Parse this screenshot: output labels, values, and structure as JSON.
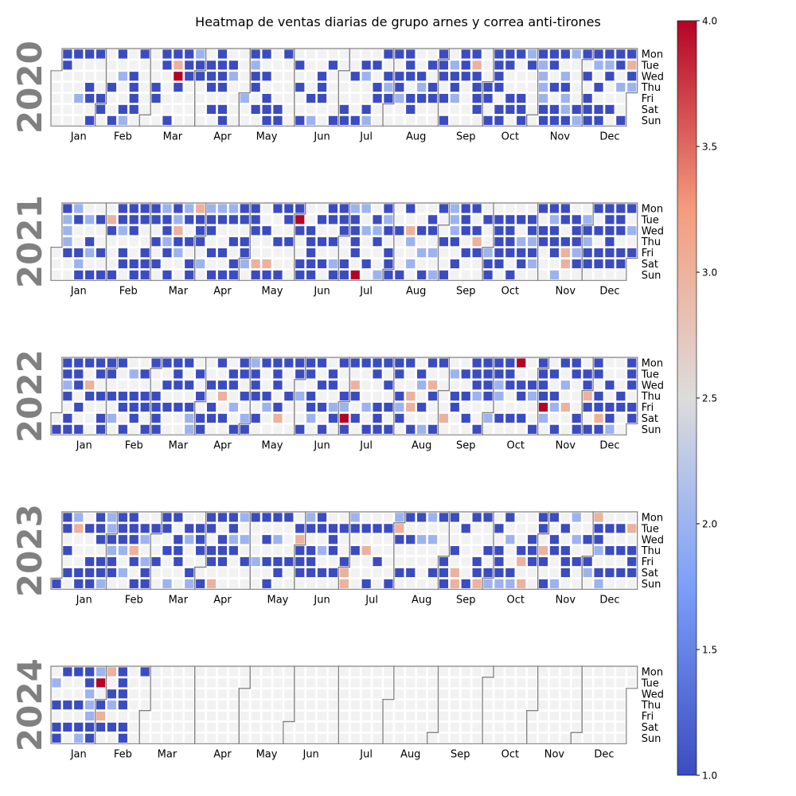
{
  "chart_data": {
    "type": "heatmap",
    "title": "Heatmap de ventas diarias de grupo arnes y correa anti-tirones",
    "years": [
      "2020",
      "2021",
      "2022",
      "2023",
      "2024"
    ],
    "weekday_labels": [
      "Mon",
      "Tue",
      "Wed",
      "Thu",
      "Fri",
      "Sat",
      "Sun"
    ],
    "month_labels": [
      "Jan",
      "Feb",
      "Mar",
      "Apr",
      "May",
      "Jun",
      "Jul",
      "Aug",
      "Sep",
      "Oct",
      "Nov",
      "Dec"
    ],
    "colorbar": {
      "min": 1.0,
      "max": 4.0,
      "ticks": [
        1.0,
        1.5,
        2.0,
        2.5,
        3.0,
        3.5,
        4.0
      ],
      "colormap": "coolwarm"
    },
    "grid": false,
    "colors": {
      "empty_cell": "#f2f2f2",
      "month_border": "#808080",
      "year_label": "#808080"
    },
    "sales": {
      "2020": {
        "01-06": 1,
        "01-07": 1,
        "01-13": 1,
        "01-17": 2,
        "01-20": 1,
        "01-23": 1,
        "01-24": 1,
        "01-26": 1,
        "01-27": 1,
        "01-31": 1,
        "02-01": 1,
        "02-06": 1,
        "02-09": 1,
        "02-10": 1,
        "02-12": 2,
        "02-15": 1,
        "02-16": 2,
        "02-19": 1,
        "02-20": 1,
        "02-21": 1,
        "02-22": 1,
        "02-24": 1,
        "03-05": 1,
        "03-06": 1,
        "03-09": 1,
        "03-10": 1,
        "03-15": 1,
        "03-16": 1,
        "03-17": 3,
        "03-18": 4,
        "03-19": 1,
        "03-23": 1,
        "03-24": 1,
        "03-25": 1,
        "03-30": 2,
        "03-31": 1,
        "04-01": 1,
        "04-07": 1,
        "04-08": 1,
        "04-09": 1,
        "04-11": 1,
        "04-13": 1,
        "04-14": 1,
        "04-15": 1,
        "04-16": 1,
        "04-18": 1,
        "04-19": 1,
        "04-21": 1,
        "04-22": 2,
        "05-01": 2,
        "05-04": 1,
        "05-05": 2,
        "05-06": 1,
        "05-07": 1,
        "05-09": 1,
        "05-11": 1,
        "05-13": 1,
        "05-15": 1,
        "05-16": 1,
        "05-17": 1,
        "05-23": 1,
        "05-24": 1,
        "05-25": 1,
        "06-02": 1,
        "06-04": 1,
        "06-07": 1,
        "06-12": 1,
        "06-14": 2,
        "06-17": 1,
        "06-18": 1,
        "06-19": 1,
        "06-23": 1,
        "06-28": 1,
        "07-04": 1,
        "07-05": 1,
        "07-08": 1,
        "07-12": 1,
        "07-14": 1,
        "07-15": 2,
        "07-18": 1,
        "07-19": 2,
        "07-21": 1,
        "07-23": 1,
        "07-24": 1,
        "07-27": 1,
        "07-29": 1,
        "07-30": 2,
        "07-31": 1,
        "08-03": 1,
        "08-05": 1,
        "08-06": 1,
        "08-07": 2,
        "08-10": 1,
        "08-11": 1,
        "08-12": 1,
        "08-14": 1,
        "08-15": 1,
        "08-19": 1,
        "08-20": 2,
        "08-21": 1,
        "08-25": 1,
        "08-27": 1,
        "08-28": 1,
        "08-31": 1,
        "09-01": 1,
        "09-02": 1,
        "09-04": 1,
        "09-06": 1,
        "09-08": 2,
        "09-09": 1,
        "09-10": 1,
        "09-11": 2,
        "09-14": 1,
        "09-15": 1,
        "09-16": 1,
        "09-21": 1,
        "09-22": 3,
        "09-23": 1,
        "09-24": 1,
        "09-25": 1,
        "09-26": 1,
        "10-01": 1,
        "10-02": 1,
        "10-04": 1,
        "10-05": 1,
        "10-06": 1,
        "10-07": 1,
        "10-08": 1,
        "10-10": 1,
        "10-11": 1,
        "10-12": 1,
        "10-13": 1,
        "10-16": 1,
        "10-17": 1,
        "10-19": 1,
        "10-23": 1,
        "10-24": 1,
        "10-25": 1,
        "10-26": 2,
        "10-27": 1,
        "11-02": 1,
        "11-03": 2,
        "11-04": 2,
        "11-05": 2,
        "11-06": 2,
        "11-07": 1,
        "11-08": 1,
        "11-09": 1,
        "11-10": 1,
        "11-12": 1,
        "11-14": 1,
        "11-15": 1,
        "11-16": 1,
        "11-18": 2,
        "11-19": 1,
        "11-20": 2,
        "11-21": 2,
        "11-22": 1,
        "11-23": 2,
        "11-28": 1,
        "11-29": 2,
        "11-30": 1,
        "12-02": 1,
        "12-04": 1,
        "12-05": 1,
        "12-06": 1,
        "12-07": 1,
        "12-08": 2,
        "12-10": 1,
        "12-12": 1,
        "12-13": 1,
        "12-14": 1,
        "12-15": 2,
        "12-16": 1,
        "12-19": 1,
        "12-21": 1,
        "12-22": 1,
        "12-24": 2,
        "12-27": 1,
        "12-28": 1,
        "12-29": 3,
        "12-30": 1,
        "12-31": 2
      },
      "2021": {
        "01-04": 1,
        "01-05": 2,
        "01-06": 2,
        "01-07": 2,
        "01-08": 1,
        "01-11": 2,
        "01-12": 1,
        "01-15": 1,
        "01-16": 2,
        "01-17": 1,
        "01-19": 2,
        "01-21": 1,
        "01-22": 2,
        "01-24": 1,
        "01-26": 1,
        "01-29": 1,
        "01-31": 1,
        "02-02": 3,
        "02-03": 1,
        "02-07": 1,
        "02-08": 1,
        "02-09": 1,
        "02-10": 2,
        "02-12": 1,
        "02-13": 1,
        "02-15": 1,
        "02-16": 1,
        "02-17": 1,
        "02-20": 1,
        "02-21": 1,
        "02-22": 1,
        "02-23": 1,
        "02-26": 1,
        "02-27": 1,
        "02-28": 1,
        "03-01": 1,
        "03-02": 1,
        "03-04": 1,
        "03-06": 1,
        "03-08": 2,
        "03-09": 1,
        "03-10": 1,
        "03-11": 2,
        "03-12": 1,
        "03-14": 1,
        "03-15": 1,
        "03-16": 2,
        "03-17": 3,
        "03-18": 1,
        "03-19": 2,
        "03-22": 2,
        "03-23": 1,
        "03-25": 1,
        "03-27": 1,
        "03-28": 1,
        "03-29": 3,
        "03-30": 1,
        "03-31": 1,
        "04-01": 1,
        "04-03": 2,
        "04-05": 2,
        "04-06": 1,
        "04-07": 1,
        "04-09": 1,
        "04-11": 1,
        "04-12": 2,
        "04-13": 1,
        "04-16": 1,
        "04-18": 1,
        "04-19": 2,
        "04-20": 1,
        "04-22": 1,
        "04-24": 1,
        "04-25": 1,
        "04-26": 1,
        "04-27": 1,
        "04-29": 1,
        "04-30": 1,
        "05-01": 2,
        "05-03": 1,
        "05-04": 1,
        "05-05": 1,
        "05-08": 3,
        "05-09": 1,
        "05-12": 1,
        "05-15": 3,
        "05-16": 1,
        "05-17": 1,
        "05-20": 1,
        "05-23": 1,
        "05-24": 1,
        "05-25": 1,
        "05-27": 1,
        "05-31": 1,
        "06-01": 4,
        "06-02": 1,
        "06-05": 1,
        "06-06": 1,
        "06-09": 1,
        "06-10": 1,
        "06-11": 1,
        "06-12": 1,
        "06-13": 1,
        "06-15": 1,
        "06-17": 1,
        "06-19": 1,
        "06-21": 1,
        "06-22": 1,
        "06-24": 1,
        "06-26": 2,
        "06-27": 1,
        "06-28": 1,
        "06-29": 1,
        "06-30": 1,
        "07-03": 1,
        "07-04": 1,
        "07-05": 2,
        "07-06": 1,
        "07-07": 1,
        "07-08": 1,
        "07-09": 1,
        "07-11": 4,
        "07-12": 2,
        "07-14": 2,
        "07-17": 1,
        "07-20": 1,
        "07-21": 2,
        "07-22": 1,
        "07-25": 2,
        "07-26": 1,
        "07-27": 2,
        "07-28": 1,
        "07-30": 1,
        "07-31": 1,
        "08-01": 1,
        "08-04": 1,
        "08-08": 1,
        "08-09": 1,
        "08-11": 3,
        "08-12": 2,
        "08-14": 2,
        "08-18": 1,
        "08-20": 2,
        "08-22": 1,
        "08-24": 1,
        "08-25": 1,
        "08-27": 2,
        "08-29": 2,
        "08-30": 1,
        "09-02": 1,
        "09-05": 1,
        "09-06": 2,
        "09-07": 2,
        "09-08": 2,
        "09-09": 1,
        "09-11": 1,
        "09-13": 1,
        "09-14": 1,
        "09-15": 1,
        "09-17": 1,
        "09-20": 1,
        "09-22": 1,
        "09-23": 3,
        "09-24": 1,
        "09-28": 1,
        "10-01": 2,
        "10-02": 1,
        "10-03": 1,
        "10-05": 1,
        "10-06": 1,
        "10-07": 1,
        "10-08": 1,
        "10-09": 1,
        "10-12": 1,
        "10-13": 1,
        "10-14": 1,
        "10-15": 1,
        "10-17": 1,
        "10-19": 1,
        "10-21": 2,
        "10-22": 1,
        "10-23": 1,
        "10-26": 1,
        "10-27": 1,
        "10-28": 2,
        "10-29": 1,
        "10-30": 2,
        "11-01": 1,
        "11-03": 1,
        "11-04": 1,
        "11-08": 1,
        "11-09": 2,
        "11-10": 1,
        "11-11": 1,
        "11-12": 1,
        "11-14": 2,
        "11-15": 1,
        "11-16": 1,
        "11-18": 1,
        "11-19": 3,
        "11-20": 3,
        "11-23": 1,
        "11-24": 1,
        "11-25": 1,
        "11-26": 2,
        "11-27": 1,
        "11-30": 2,
        "12-01": 1,
        "12-02": 2,
        "12-03": 1,
        "12-04": 1,
        "12-06": 1,
        "12-08": 1,
        "12-10": 1,
        "12-11": 1,
        "12-13": 1,
        "12-14": 1,
        "12-15": 1,
        "12-16": 1,
        "12-17": 1,
        "12-18": 1,
        "12-20": 1,
        "12-21": 1,
        "12-22": 1,
        "12-24": 1,
        "12-25": 1,
        "12-27": 1,
        "12-29": 2,
        "12-31": 1
      },
      "2022": {
        "01-02": 1,
        "01-03": 1,
        "01-04": 1,
        "01-05": 2,
        "01-06": 1,
        "01-08": 1,
        "01-09": 1,
        "01-10": 1,
        "01-11": 1,
        "01-12": 1,
        "01-14": 1,
        "01-16": 1,
        "01-17": 1,
        "01-19": 3,
        "01-20": 1,
        "01-24": 1,
        "01-25": 1,
        "01-27": 1,
        "01-29": 1,
        "01-30": 1,
        "01-31": 1,
        "02-01": 1,
        "02-03": 1,
        "02-05": 2,
        "02-07": 1,
        "02-10": 1,
        "02-11": 1,
        "02-13": 1,
        "02-15": 2,
        "02-17": 1,
        "02-18": 1,
        "02-19": 1,
        "02-22": 1,
        "02-24": 1,
        "02-25": 1,
        "02-27": 1,
        "02-28": 1,
        "03-03": 1,
        "03-04": 1,
        "03-05": 1,
        "03-06": 1,
        "03-07": 1,
        "03-09": 1,
        "03-11": 1,
        "03-14": 1,
        "03-15": 1,
        "03-16": 1,
        "03-18": 1,
        "03-21": 1,
        "03-23": 1,
        "03-25": 1,
        "03-26": 2,
        "03-27": 2,
        "03-29": 1,
        "03-31": 1,
        "04-02": 1,
        "04-03": 1,
        "04-06": 1,
        "04-08": 1,
        "04-09": 1,
        "04-11": 1,
        "04-13": 1,
        "04-14": 3,
        "04-16": 1,
        "04-19": 1,
        "04-20": 1,
        "04-22": 2,
        "04-24": 1,
        "04-25": 1,
        "04-26": 1,
        "04-28": 1,
        "04-30": 2,
        "05-01": 1,
        "05-02": 2,
        "05-03": 1,
        "05-04": 1,
        "05-05": 1,
        "05-07": 1,
        "05-09": 1,
        "05-12": 1,
        "05-13": 2,
        "05-16": 1,
        "05-17": 1,
        "05-18": 1,
        "05-20": 1,
        "05-21": 3,
        "05-23": 1,
        "05-26": 1,
        "05-30": 1,
        "05-31": 1,
        "06-02": 2,
        "06-05": 1,
        "06-06": 1,
        "06-07": 1,
        "06-09": 1,
        "06-10": 1,
        "06-11": 2,
        "06-13": 1,
        "06-15": 1,
        "06-17": 1,
        "06-19": 1,
        "06-21": 1,
        "06-22": 1,
        "06-24": 2,
        "06-25": 1,
        "06-27": 1,
        "06-30": 1,
        "07-01": 2,
        "07-02": 4,
        "07-03": 1,
        "07-04": 1,
        "07-06": 3,
        "07-07": 1,
        "07-09": 1,
        "07-11": 1,
        "07-15": 2,
        "07-17": 1,
        "07-18": 1,
        "07-19": 1,
        "07-22": 1,
        "07-23": 1,
        "07-24": 1,
        "07-25": 1,
        "07-27": 1,
        "07-29": 1,
        "07-31": 1,
        "08-01": 1,
        "08-02": 1,
        "08-04": 1,
        "08-05": 2,
        "08-06": 1,
        "08-08": 1,
        "08-11": 3,
        "08-12": 3,
        "08-14": 1,
        "08-16": 1,
        "08-17": 2,
        "08-19": 1,
        "08-21": 2,
        "08-22": 1,
        "08-24": 3,
        "08-25": 1,
        "08-28": 1,
        "08-29": 1,
        "09-03": 3,
        "09-06": 2,
        "09-08": 1,
        "09-09": 1,
        "09-13": 1,
        "09-15": 1,
        "09-17": 1,
        "09-19": 1,
        "09-20": 1,
        "09-21": 1,
        "09-22": 2,
        "09-25": 1,
        "09-26": 1,
        "09-27": 1,
        "09-28": 1,
        "09-29": 1,
        "10-01": 2,
        "10-03": 1,
        "10-04": 1,
        "10-05": 2,
        "10-06": 2,
        "10-08": 1,
        "10-10": 1,
        "10-11": 1,
        "10-12": 1,
        "10-15": 1,
        "10-17": 4,
        "10-19": 1,
        "10-20": 1,
        "10-22": 1,
        "10-26": 1,
        "10-27": 2,
        "10-30": 1,
        "10-31": 1,
        "11-01": 1,
        "11-02": 1,
        "11-03": 1,
        "11-04": 4,
        "11-05": 2,
        "11-08": 1,
        "11-10": 1,
        "11-11": 2,
        "11-13": 1,
        "11-14": 1,
        "11-16": 2,
        "11-18": 3,
        "11-21": 1,
        "11-22": 1,
        "11-26": 1,
        "11-27": 1,
        "11-29": 1,
        "11-30": 1,
        "12-01": 3,
        "12-02": 1,
        "12-04": 1,
        "12-05": 1,
        "12-06": 1,
        "12-08": 1,
        "12-09": 1,
        "12-10": 3,
        "12-11": 1,
        "12-14": 1,
        "12-16": 1,
        "12-17": 1,
        "12-18": 2,
        "12-22": 1,
        "12-23": 1,
        "12-26": 1,
        "12-27": 1,
        "12-28": 1,
        "12-30": 1,
        "12-31": 1
      },
      "2023": {
        "01-01": 1,
        "01-02": 1,
        "01-03": 1,
        "01-05": 1,
        "01-07": 1,
        "01-09": 2,
        "01-10": 3,
        "01-14": 1,
        "01-15": 1,
        "01-17": 1,
        "01-20": 1,
        "01-21": 1,
        "01-22": 1,
        "01-23": 1,
        "01-24": 1,
        "01-25": 1,
        "01-27": 1,
        "01-28": 1,
        "01-29": 2,
        "01-30": 2,
        "01-31": 2,
        "02-01": 1,
        "02-02": 2,
        "02-03": 1,
        "02-04": 1,
        "02-06": 1,
        "02-07": 1,
        "02-08": 1,
        "02-09": 2,
        "02-11": 2,
        "02-13": 1,
        "02-14": 1,
        "02-15": 1,
        "02-16": 3,
        "02-17": 1,
        "02-19": 1,
        "02-21": 1,
        "02-22": 2,
        "02-24": 2,
        "02-25": 1,
        "02-26": 1,
        "02-28": 1,
        "03-03": 1,
        "03-06": 1,
        "03-07": 1,
        "03-09": 1,
        "03-12": 2,
        "03-13": 1,
        "03-15": 1,
        "03-16": 1,
        "03-17": 1,
        "03-21": 1,
        "03-22": 2,
        "03-25": 1,
        "03-26": 2,
        "03-28": 1,
        "03-29": 1,
        "03-30": 1,
        "04-02": 1,
        "04-03": 1,
        "04-04": 1,
        "04-06": 1,
        "04-07": 1,
        "04-09": 3,
        "04-10": 1,
        "04-12": 1,
        "04-13": 1,
        "04-14": 1,
        "04-17": 1,
        "04-18": 1,
        "04-19": 2,
        "04-20": 1,
        "04-24": 2,
        "04-26": 2,
        "04-28": 1,
        "05-01": 1,
        "05-05": 2,
        "05-08": 1,
        "05-10": 1,
        "05-12": 1,
        "05-14": 1,
        "05-15": 1,
        "05-17": 2,
        "05-19": 1,
        "05-20": 1,
        "05-22": 1,
        "05-26": 1,
        "05-30": 1,
        "05-31": 3,
        "06-01": 1,
        "06-02": 1,
        "06-03": 1,
        "06-05": 2,
        "06-06": 1,
        "06-08": 1,
        "06-09": 1,
        "06-10": 1,
        "06-12": 1,
        "06-13": 1,
        "06-15": 2,
        "06-17": 1,
        "06-20": 1,
        "06-21": 1,
        "06-22": 1,
        "06-24": 1,
        "06-27": 1,
        "06-30": 1,
        "07-01": 3,
        "07-02": 3,
        "07-03": 2,
        "07-04": 1,
        "07-06": 1,
        "07-11": 1,
        "07-13": 3,
        "07-16": 1,
        "07-18": 1,
        "07-21": 1,
        "07-25": 1,
        "07-30": 1,
        "07-31": 2,
        "08-01": 3,
        "08-02": 1,
        "08-05": 1,
        "08-07": 1,
        "08-09": 1,
        "08-12": 1,
        "08-14": 1,
        "08-16": 2,
        "08-21": 2,
        "08-23": 2,
        "08-26": 1,
        "08-28": 1,
        "09-01": 1,
        "09-02": 1,
        "09-03": 1,
        "09-04": 1,
        "09-07": 1,
        "09-09": 3,
        "09-10": 3,
        "09-12": 1,
        "09-17": 1,
        "09-18": 1,
        "09-22": 1,
        "09-23": 1,
        "09-24": 3,
        "09-25": 1,
        "09-28": 1,
        "09-30": 1,
        "10-01": 2,
        "10-03": 1,
        "10-05": 1,
        "10-06": 1,
        "10-07": 1,
        "10-08": 2,
        "10-09": 1,
        "10-11": 2,
        "10-14": 1,
        "10-15": 2,
        "10-19": 1,
        "10-20": 3,
        "10-22": 3,
        "10-25": 1,
        "10-26": 1,
        "10-27": 1,
        "10-30": 1,
        "10-31": 1,
        "11-02": 3,
        "11-03": 1,
        "11-05": 1,
        "11-06": 1,
        "11-08": 1,
        "11-09": 1,
        "11-12": 2,
        "11-14": 1,
        "11-16": 1,
        "11-17": 1,
        "11-18": 1,
        "11-20": 2,
        "11-22": 2,
        "11-24": 1,
        "11-29": 1,
        "12-01": 1,
        "12-02": 2,
        "12-04": 3,
        "12-05": 1,
        "12-06": 1,
        "12-07": 2,
        "12-09": 1,
        "12-10": 2,
        "12-12": 1,
        "12-14": 1,
        "12-16": 1,
        "12-19": 1,
        "12-21": 1,
        "12-23": 1,
        "12-26": 3,
        "12-28": 1,
        "12-29": 1,
        "12-30": 1
      },
      "2024": {
        "01-02": 2,
        "01-04": 1,
        "01-06": 1,
        "01-07": 1,
        "01-08": 1,
        "01-11": 1,
        "01-13": 1,
        "01-15": 1,
        "01-18": 1,
        "01-20": 1,
        "01-21": 2,
        "01-22": 1,
        "01-23": 1,
        "01-24": 2,
        "01-25": 2,
        "01-26": 2,
        "01-27": 1,
        "01-28": 1,
        "01-29": 2,
        "01-30": 4,
        "02-01": 1,
        "02-02": 3,
        "02-03": 1,
        "02-05": 3,
        "02-07": 1,
        "02-08": 2,
        "02-10": 1,
        "02-12": 1,
        "02-13": 1,
        "02-14": 1,
        "02-15": 1,
        "02-17": 1,
        "02-18": 1,
        "02-26": 1
      }
    }
  }
}
